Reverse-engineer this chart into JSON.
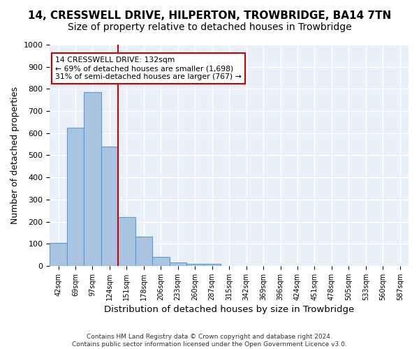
{
  "title": "14, CRESSWELL DRIVE, HILPERTON, TROWBRIDGE, BA14 7TN",
  "subtitle": "Size of property relative to detached houses in Trowbridge",
  "xlabel": "Distribution of detached houses by size in Trowbridge",
  "ylabel": "Number of detached properties",
  "bins": [
    "42sqm",
    "69sqm",
    "97sqm",
    "124sqm",
    "151sqm",
    "178sqm",
    "206sqm",
    "233sqm",
    "260sqm",
    "287sqm",
    "315sqm",
    "342sqm",
    "369sqm",
    "396sqm",
    "424sqm",
    "451sqm",
    "478sqm",
    "505sqm",
    "533sqm",
    "560sqm",
    "587sqm"
  ],
  "values": [
    103,
    623,
    787,
    540,
    222,
    133,
    42,
    16,
    10,
    10,
    0,
    0,
    0,
    0,
    0,
    0,
    0,
    0,
    0,
    0,
    0
  ],
  "bar_color": "#a8c4e0",
  "bar_edge_color": "#5b9bd5",
  "annotation_text": "14 CRESSWELL DRIVE: 132sqm\n← 69% of detached houses are smaller (1,698)\n31% of semi-detached houses are larger (767) →",
  "annotation_box_color": "#ffffff",
  "annotation_box_edge_color": "#cc0000",
  "vline_x": 3.5,
  "ylim": [
    0,
    1000
  ],
  "yticks": [
    0,
    100,
    200,
    300,
    400,
    500,
    600,
    700,
    800,
    900,
    1000
  ],
  "background_color": "#eaf0f8",
  "grid_color": "#ffffff",
  "footer": "Contains HM Land Registry data © Crown copyright and database right 2024.\nContains public sector information licensed under the Open Government Licence v3.0.",
  "title_fontsize": 11,
  "subtitle_fontsize": 10,
  "xlabel_fontsize": 9.5,
  "ylabel_fontsize": 9
}
